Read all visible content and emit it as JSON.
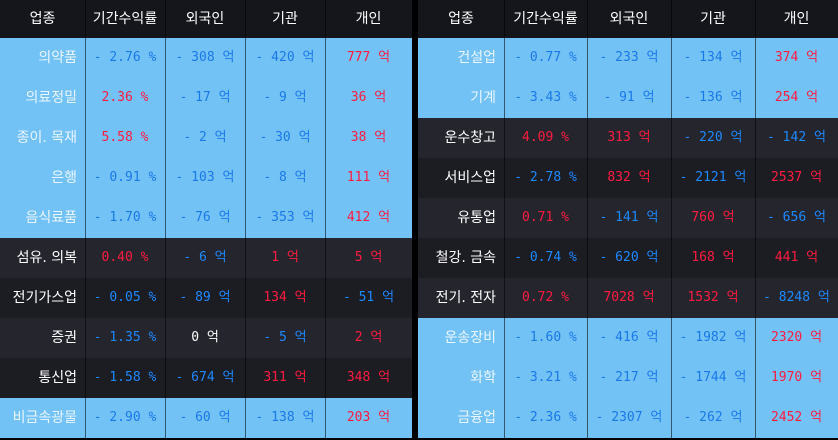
{
  "headers": [
    "업종",
    "기간수익률",
    "외국인",
    "기관",
    "개인"
  ],
  "colors": {
    "light_row": "#72c2f6",
    "dark_row": "#25262d",
    "positive": "#ff1a40",
    "negative": "#1e88ff"
  },
  "left": [
    {
      "sector": "의약품",
      "ret": "- 2.76 %",
      "ret_s": "neg",
      "foreign": "- 308 억",
      "foreign_s": "neg",
      "inst": "- 420 억",
      "inst_s": "neg",
      "indiv": "777 억",
      "indiv_s": "pos",
      "shade": "light"
    },
    {
      "sector": "의료정밀",
      "ret": "2.36 %",
      "ret_s": "pos",
      "foreign": "- 17 억",
      "foreign_s": "neg",
      "inst": "- 9 억",
      "inst_s": "neg",
      "indiv": "36 억",
      "indiv_s": "pos",
      "shade": "light"
    },
    {
      "sector": "종이. 목재",
      "ret": "5.58 %",
      "ret_s": "pos",
      "foreign": "- 2 억",
      "foreign_s": "neg",
      "inst": "- 30 억",
      "inst_s": "neg",
      "indiv": "38 억",
      "indiv_s": "pos",
      "shade": "light"
    },
    {
      "sector": "은행",
      "ret": "- 0.91 %",
      "ret_s": "neg",
      "foreign": "- 103 억",
      "foreign_s": "neg",
      "inst": "- 8 억",
      "inst_s": "neg",
      "indiv": "111 억",
      "indiv_s": "pos",
      "shade": "light"
    },
    {
      "sector": "음식료품",
      "ret": "- 1.70 %",
      "ret_s": "neg",
      "foreign": "- 76 억",
      "foreign_s": "neg",
      "inst": "- 353 억",
      "inst_s": "neg",
      "indiv": "412 억",
      "indiv_s": "pos",
      "shade": "light"
    },
    {
      "sector": "섬유. 의복",
      "ret": "0.40 %",
      "ret_s": "pos",
      "foreign": "- 6 억",
      "foreign_s": "neg",
      "inst": "1 억",
      "inst_s": "pos",
      "indiv": "5 억",
      "indiv_s": "pos",
      "shade": "dark"
    },
    {
      "sector": "전기가스업",
      "ret": "- 0.05 %",
      "ret_s": "neg",
      "foreign": "- 89 억",
      "foreign_s": "neg",
      "inst": "134 억",
      "inst_s": "pos",
      "indiv": "- 51 억",
      "indiv_s": "neg",
      "shade": "dark2"
    },
    {
      "sector": "증권",
      "ret": "- 1.35 %",
      "ret_s": "neg",
      "foreign": "0 억",
      "foreign_s": "zero",
      "inst": "- 5 억",
      "inst_s": "neg",
      "indiv": "2 억",
      "indiv_s": "pos",
      "shade": "dark"
    },
    {
      "sector": "통신업",
      "ret": "- 1.58 %",
      "ret_s": "neg",
      "foreign": "- 674 억",
      "foreign_s": "neg",
      "inst": "311 억",
      "inst_s": "pos",
      "indiv": "348 억",
      "indiv_s": "pos",
      "shade": "dark2"
    },
    {
      "sector": "비금속광물",
      "ret": "- 2.90 %",
      "ret_s": "neg",
      "foreign": "- 60 억",
      "foreign_s": "neg",
      "inst": "- 138 억",
      "inst_s": "neg",
      "indiv": "203 억",
      "indiv_s": "pos",
      "shade": "light"
    }
  ],
  "right": [
    {
      "sector": "건설업",
      "ret": "- 0.77 %",
      "ret_s": "neg",
      "foreign": "- 233 억",
      "foreign_s": "neg",
      "inst": "- 134 억",
      "inst_s": "neg",
      "indiv": "374 억",
      "indiv_s": "pos",
      "shade": "light"
    },
    {
      "sector": "기계",
      "ret": "- 3.43 %",
      "ret_s": "neg",
      "foreign": "- 91 억",
      "foreign_s": "neg",
      "inst": "- 136 억",
      "inst_s": "neg",
      "indiv": "254 억",
      "indiv_s": "pos",
      "shade": "light"
    },
    {
      "sector": "운수창고",
      "ret": "4.09 %",
      "ret_s": "pos",
      "foreign": "313 억",
      "foreign_s": "pos",
      "inst": "- 220 억",
      "inst_s": "neg",
      "indiv": "- 142 억",
      "indiv_s": "neg",
      "shade": "dark"
    },
    {
      "sector": "서비스업",
      "ret": "- 2.78 %",
      "ret_s": "neg",
      "foreign": "832 억",
      "foreign_s": "pos",
      "inst": "- 2121 억",
      "inst_s": "neg",
      "indiv": "2537 억",
      "indiv_s": "pos",
      "shade": "dark2"
    },
    {
      "sector": "유통업",
      "ret": "0.71 %",
      "ret_s": "pos",
      "foreign": "- 141 억",
      "foreign_s": "neg",
      "inst": "760 억",
      "inst_s": "pos",
      "indiv": "- 656 억",
      "indiv_s": "neg",
      "shade": "dark"
    },
    {
      "sector": "철강. 금속",
      "ret": "- 0.74 %",
      "ret_s": "neg",
      "foreign": "- 620 억",
      "foreign_s": "neg",
      "inst": "168 억",
      "inst_s": "pos",
      "indiv": "441 억",
      "indiv_s": "pos",
      "shade": "dark2"
    },
    {
      "sector": "전기. 전자",
      "ret": "0.72 %",
      "ret_s": "pos",
      "foreign": "7028 억",
      "foreign_s": "pos",
      "inst": "1532 억",
      "inst_s": "pos",
      "indiv": "- 8248 억",
      "indiv_s": "neg",
      "shade": "dark"
    },
    {
      "sector": "운송장비",
      "ret": "- 1.60 %",
      "ret_s": "neg",
      "foreign": "- 416 억",
      "foreign_s": "neg",
      "inst": "- 1982 억",
      "inst_s": "neg",
      "indiv": "2320 억",
      "indiv_s": "pos",
      "shade": "light"
    },
    {
      "sector": "화학",
      "ret": "- 3.21 %",
      "ret_s": "neg",
      "foreign": "- 217 억",
      "foreign_s": "neg",
      "inst": "- 1744 억",
      "inst_s": "neg",
      "indiv": "1970 억",
      "indiv_s": "pos",
      "shade": "light"
    },
    {
      "sector": "금융업",
      "ret": "- 2.36 %",
      "ret_s": "neg",
      "foreign": "- 2307 억",
      "foreign_s": "neg",
      "inst": "- 262 억",
      "inst_s": "neg",
      "indiv": "2452 억",
      "indiv_s": "pos",
      "shade": "light"
    }
  ]
}
